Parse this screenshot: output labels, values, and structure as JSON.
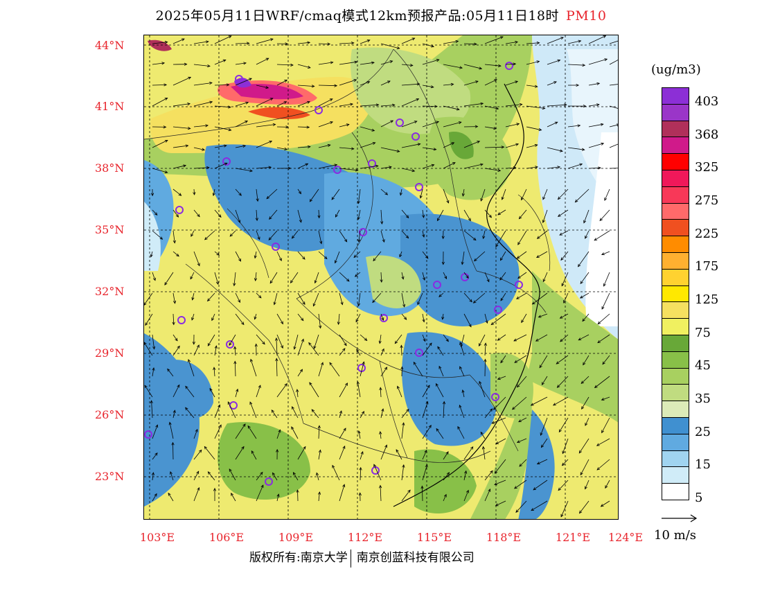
{
  "header": {
    "title": "2025年05月11日WRF/cmaq模式12km预报产品:05月11日18时",
    "pollutant": "PM10"
  },
  "axes": {
    "lat_labels": [
      "44°N",
      "41°N",
      "38°N",
      "35°N",
      "32°N",
      "29°N",
      "26°N",
      "23°N"
    ],
    "lon_labels": [
      "103°E",
      "106°E",
      "109°E",
      "112°E",
      "115°E",
      "118°E",
      "121°E",
      "124°E"
    ]
  },
  "legend": {
    "unit": "(ug/m3)",
    "levels": [
      {
        "label": "403",
        "color": "#8c2fd6"
      },
      {
        "label": "",
        "color": "#9a35c8"
      },
      {
        "label": "368",
        "color": "#b0305a"
      },
      {
        "label": "",
        "color": "#d01a8a"
      },
      {
        "label": "325",
        "color": "#ff0000"
      },
      {
        "label": "",
        "color": "#f0185a"
      },
      {
        "label": "275",
        "color": "#f83858"
      },
      {
        "label": "",
        "color": "#ff6a6a"
      },
      {
        "label": "225",
        "color": "#f05020"
      },
      {
        "label": "",
        "color": "#ff8c00"
      },
      {
        "label": "175",
        "color": "#ffb030"
      },
      {
        "label": "",
        "color": "#ffd230"
      },
      {
        "label": "125",
        "color": "#ffe800"
      },
      {
        "label": "",
        "color": "#f5e060"
      },
      {
        "label": "75",
        "color": "#f0f060"
      },
      {
        "label": "",
        "color": "#68a838"
      },
      {
        "label": "45",
        "color": "#88c048"
      },
      {
        "label": "",
        "color": "#a8d060"
      },
      {
        "label": "35",
        "color": "#c0dc80"
      },
      {
        "label": "",
        "color": "#dcebb8"
      },
      {
        "label": "25",
        "color": "#4090d0"
      },
      {
        "label": "",
        "color": "#60aae0"
      },
      {
        "label": "15",
        "color": "#a0d4f0"
      },
      {
        "label": "",
        "color": "#d0ecf8"
      },
      {
        "label": "5",
        "color": "#ffffff"
      }
    ]
  },
  "wind_reference": "10 m/s",
  "footer": {
    "left": "版权所有:南京大学",
    "right": "南京创蓝科技有限公司"
  },
  "colors": {
    "label_red": "#e8242c",
    "station_marker": "#8a2be2"
  }
}
